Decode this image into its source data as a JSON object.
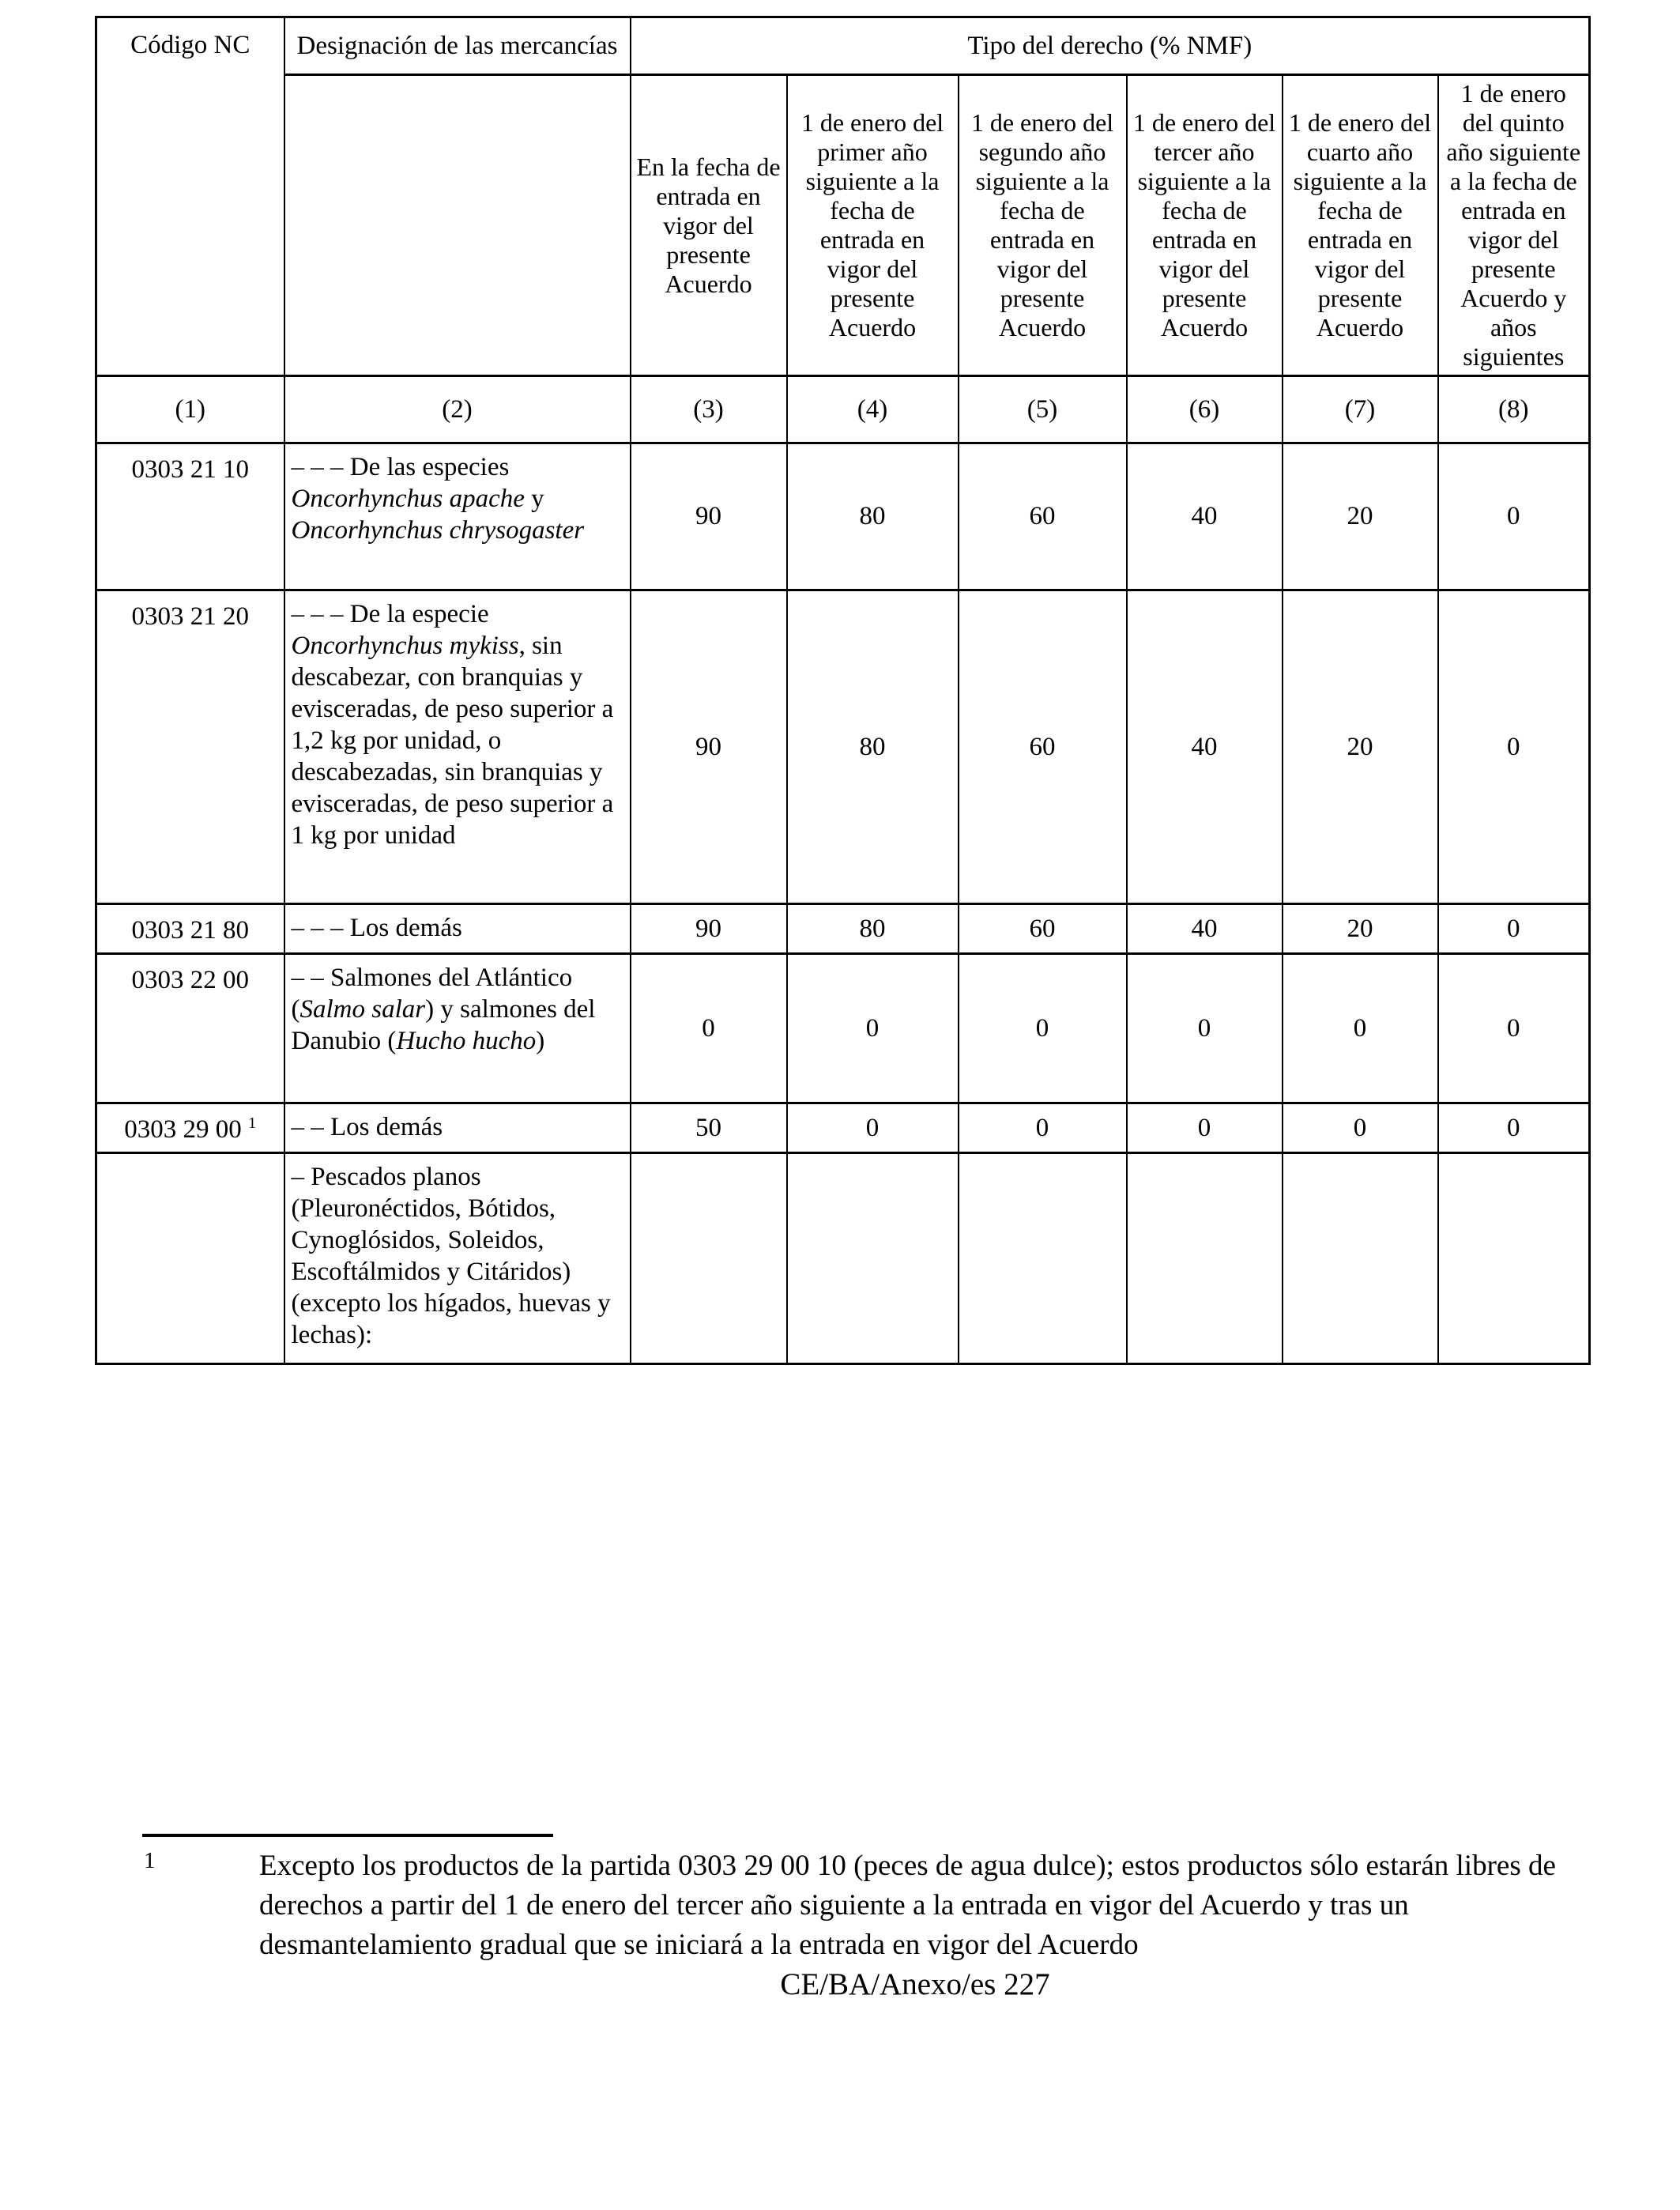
{
  "page": {
    "footer": "CE/BA/Anexo/es 227"
  },
  "table": {
    "header_row1": {
      "codigo": "Código NC",
      "designacion": "Designación de las mercancías",
      "tipo": "Tipo del derecho (% NMF)"
    },
    "subheaders": [
      "En la fecha de entrada en vigor del presente Acuerdo",
      "1 de enero del primer año siguiente a la fecha de entrada en vigor del presente Acuerdo",
      "1 de enero del segundo año siguiente a la fecha de entrada en vigor del presente Acuerdo",
      "1 de enero del tercer año siguiente a la fecha de entrada en vigor del presente Acuerdo",
      "1 de enero del cuarto año siguiente a la fecha de entrada en vigor del presente Acuerdo",
      "1 de enero del quinto año siguiente a la fecha de entrada en vigor del presente Acuerdo y años siguientes"
    ],
    "column_numbers": [
      "(1)",
      "(2)",
      "(3)",
      "(4)",
      "(5)",
      "(6)",
      "(7)",
      "(8)"
    ],
    "rows": [
      {
        "code": [
          {
            "t": "0303 21 10"
          }
        ],
        "desc": [
          {
            "t": "– – – De las especies "
          },
          {
            "t": "Oncorhynchus apache",
            "i": true
          },
          {
            "t": " y "
          },
          {
            "t": "Oncorhynchus chrysogaster",
            "i": true
          }
        ],
        "values": [
          "90",
          "80",
          "60",
          "40",
          "20",
          "0"
        ]
      },
      {
        "code": [
          {
            "t": "0303 21 20"
          }
        ],
        "desc": [
          {
            "t": "– – – De la especie "
          },
          {
            "t": "Oncorhynchus mykiss",
            "i": true
          },
          {
            "t": ", sin descabezar, con branquias y evisceradas, de peso superior a 1,2 kg por unidad, o descabezadas, sin branquias y evisceradas, de peso superior a 1 kg por unidad"
          }
        ],
        "values": [
          "90",
          "80",
          "60",
          "40",
          "20",
          "0"
        ]
      },
      {
        "code": [
          {
            "t": "0303 21 80"
          }
        ],
        "desc": [
          {
            "t": "– – – Los demás"
          }
        ],
        "values": [
          "90",
          "80",
          "60",
          "40",
          "20",
          "0"
        ]
      },
      {
        "code": [
          {
            "t": "0303 22 00"
          }
        ],
        "desc": [
          {
            "t": "– – Salmones del Atlántico ("
          },
          {
            "t": "Salmo salar",
            "i": true
          },
          {
            "t": ") y salmones del Danubio ("
          },
          {
            "t": "Hucho hucho",
            "i": true
          },
          {
            "t": ")"
          }
        ],
        "values": [
          "0",
          "0",
          "0",
          "0",
          "0",
          "0"
        ]
      },
      {
        "code": [
          {
            "t": "0303 29 00 "
          },
          {
            "t": "1",
            "s": true
          }
        ],
        "desc": [
          {
            "t": "– – Los demás"
          }
        ],
        "values": [
          "50",
          "0",
          "0",
          "0",
          "0",
          "0"
        ]
      },
      {
        "code": [],
        "desc": [
          {
            "t": "– Pescados planos (Pleuronéctidos, Bótidos, Cynoglósidos, Soleidos, Escoftálmidos y Citáridos) (excepto los hígados, huevas y lechas):"
          }
        ],
        "values": [
          "",
          "",
          "",
          "",
          "",
          ""
        ]
      }
    ]
  },
  "footnote": {
    "marker": "1",
    "text": "Excepto los productos de la partida 0303 29 00 10 (peces de agua dulce); estos productos sólo estarán libres de derechos a partir del 1 de enero del tercer año siguiente a la entrada en vigor del Acuerdo y tras un desmantelamiento gradual que se iniciará a la entrada en vigor del Acuerdo"
  }
}
